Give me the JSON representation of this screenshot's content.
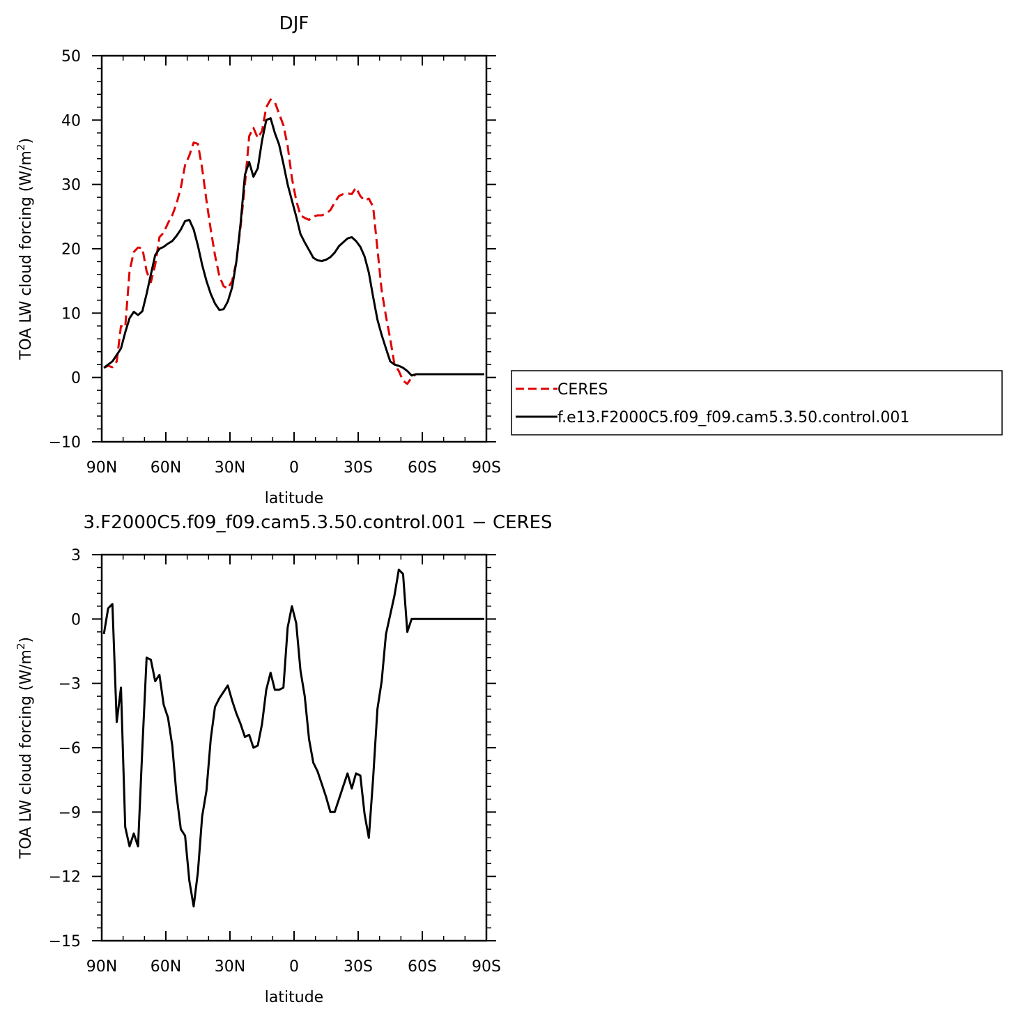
{
  "chart_data": [
    {
      "type": "line",
      "title": "DJF",
      "xlabel": "latitude",
      "ylabel": "TOA LW cloud forcing (W/m",
      "ylabel_sup": "2",
      "ylabel_end": ")",
      "xlim": [
        -90,
        90
      ],
      "ylim": [
        -10,
        50
      ],
      "x_ticks": [
        -90,
        -60,
        -30,
        0,
        30,
        60,
        90
      ],
      "x_tick_labels": [
        "90N",
        "60N",
        "30N",
        "0",
        "30S",
        "60S",
        "90S"
      ],
      "y_ticks": [
        -10,
        0,
        10,
        20,
        30,
        40,
        50
      ],
      "y_tick_labels": [
        "−10",
        "0",
        "10",
        "20",
        "30",
        "40",
        "50"
      ],
      "grid": false,
      "legend_position": "right",
      "series": [
        {
          "name": "CERES",
          "color": "#e00000",
          "dash": "dashed",
          "x": [
            -89,
            -87,
            -85,
            -83,
            -81,
            -79,
            -77,
            -75,
            -73,
            -71,
            -69,
            -67,
            -65,
            -63,
            -61,
            -59,
            -57,
            -55,
            -53,
            -51,
            -49,
            -47,
            -45,
            -43,
            -41,
            -39,
            -37,
            -35,
            -33,
            -31,
            -29,
            -27,
            -25,
            -23,
            -21,
            -19,
            -17,
            -15,
            -13,
            -11,
            -9,
            -7,
            -5,
            -3,
            -1,
            1,
            3,
            5,
            7,
            9,
            11,
            13,
            15,
            17,
            19,
            21,
            23,
            25,
            27,
            29,
            31,
            33,
            35,
            37,
            39,
            41,
            43,
            45,
            47,
            49,
            51,
            53,
            55,
            57,
            59,
            61,
            63,
            65,
            67,
            69,
            71,
            73,
            75,
            77,
            79,
            81,
            83,
            85,
            87,
            89
          ],
          "values": [
            1.5,
            1.8,
            1.6,
            2.5,
            8.0,
            7.8,
            16.5,
            19.5,
            20.2,
            20.1,
            16.5,
            14.8,
            17.5,
            21.8,
            22.5,
            24.0,
            25.2,
            27.0,
            29.5,
            33.0,
            34.5,
            36.5,
            36.3,
            32.5,
            27.5,
            23.0,
            19.0,
            15.8,
            14.2,
            13.8,
            15.0,
            18.0,
            23.5,
            30.0,
            37.5,
            38.8,
            37.2,
            38.3,
            42.0,
            43.2,
            42.8,
            41.0,
            39.2,
            36.0,
            31.0,
            27.5,
            25.2,
            24.8,
            24.5,
            25.0,
            25.2,
            25.2,
            25.5,
            26.0,
            27.2,
            28.2,
            28.5,
            28.6,
            28.5,
            29.5,
            28.2,
            27.5,
            27.8,
            26.5,
            20.0,
            13.5,
            9.5,
            6.0,
            2.0,
            1.0,
            -0.5,
            -1.0,
            0.0,
            0.5,
            0.5,
            0.5,
            0.5,
            0.5,
            0.5,
            0.5,
            0.5,
            0.5,
            0.5,
            0.5,
            0.5,
            0.5,
            0.5,
            0.5,
            0.5,
            0.5
          ]
        },
        {
          "name": "f.e13.F2000C5.f09_f09.cam5.3.50.control.001",
          "color": "#000000",
          "dash": "solid",
          "x": [
            -89,
            -87,
            -85,
            -83,
            -81,
            -79,
            -77,
            -75,
            -73,
            -71,
            -69,
            -67,
            -65,
            -63,
            -61,
            -59,
            -57,
            -55,
            -53,
            -51,
            -49,
            -47,
            -45,
            -43,
            -41,
            -39,
            -37,
            -35,
            -33,
            -31,
            -29,
            -27,
            -25,
            -23,
            -21,
            -19,
            -17,
            -15,
            -13,
            -11,
            -9,
            -7,
            -5,
            -3,
            -1,
            1,
            3,
            5,
            7,
            9,
            11,
            13,
            15,
            17,
            19,
            21,
            23,
            25,
            27,
            29,
            31,
            33,
            35,
            37,
            39,
            41,
            43,
            45,
            47,
            49,
            51,
            53,
            55,
            57,
            59,
            61,
            63,
            65,
            67,
            69,
            71,
            73,
            75,
            77,
            79,
            81,
            83,
            85,
            87,
            89
          ],
          "values": [
            1.5,
            2.0,
            2.5,
            3.5,
            4.5,
            7.0,
            9.2,
            10.2,
            9.7,
            10.3,
            13.0,
            16.0,
            19.0,
            20.0,
            20.3,
            20.8,
            21.2,
            22.0,
            23.0,
            24.3,
            24.5,
            23.0,
            20.5,
            17.5,
            15.0,
            13.0,
            11.5,
            10.5,
            10.6,
            11.8,
            14.0,
            18.0,
            24.0,
            31.5,
            33.5,
            31.2,
            32.5,
            36.8,
            40.0,
            40.3,
            38.0,
            36.2,
            33.2,
            30.0,
            27.5,
            25.0,
            22.3,
            21.0,
            19.8,
            18.6,
            18.2,
            18.1,
            18.3,
            18.7,
            19.4,
            20.4,
            21.0,
            21.6,
            21.8,
            21.2,
            20.3,
            18.8,
            16.3,
            12.5,
            9.0,
            6.6,
            4.5,
            2.5,
            2.0,
            1.8,
            1.5,
            1.0,
            0.3,
            0.5,
            0.5,
            0.5,
            0.5,
            0.5,
            0.5,
            0.5,
            0.5,
            0.5,
            0.5,
            0.5,
            0.5,
            0.5,
            0.5,
            0.5,
            0.5,
            0.5
          ]
        }
      ]
    },
    {
      "type": "line",
      "title": "3.F2000C5.f09_f09.cam5.3.50.control.001  −  CERES",
      "xlabel": "latitude",
      "ylabel": "TOA LW cloud forcing (W/m",
      "ylabel_sup": "2",
      "ylabel_end": ")",
      "xlim": [
        -90,
        90
      ],
      "ylim": [
        -15,
        3
      ],
      "x_ticks": [
        -90,
        -60,
        -30,
        0,
        30,
        60,
        90
      ],
      "x_tick_labels": [
        "90N",
        "60N",
        "30N",
        "0",
        "30S",
        "60S",
        "90S"
      ],
      "y_ticks": [
        -15,
        -12,
        -9,
        -6,
        -3,
        0,
        3
      ],
      "y_tick_labels": [
        "−15",
        "−12",
        "−9",
        "−6",
        "−3",
        "0",
        "3"
      ],
      "grid": false,
      "series": [
        {
          "color": "#000000",
          "dash": "solid",
          "x": [
            -89,
            -87,
            -85,
            -83,
            -81,
            -79,
            -77,
            -75,
            -73,
            -71,
            -69,
            -67,
            -65,
            -63,
            -61,
            -59,
            -57,
            -55,
            -53,
            -51,
            -49,
            -47,
            -45,
            -43,
            -41,
            -39,
            -37,
            -35,
            -33,
            -31,
            -29,
            -27,
            -25,
            -23,
            -21,
            -19,
            -17,
            -15,
            -13,
            -11,
            -9,
            -7,
            -5,
            -3,
            -1,
            1,
            3,
            5,
            7,
            9,
            11,
            13,
            15,
            17,
            19,
            21,
            23,
            25,
            27,
            29,
            31,
            33,
            35,
            37,
            39,
            41,
            43,
            45,
            47,
            49,
            51,
            53,
            55,
            57,
            59,
            61,
            63,
            65,
            67,
            69,
            71,
            73,
            75,
            77,
            79,
            81,
            83,
            85,
            87,
            89
          ],
          "values": [
            -0.7,
            0.5,
            0.7,
            -4.8,
            -3.2,
            -9.7,
            -10.6,
            -10.0,
            -10.6,
            -6.0,
            -1.8,
            -1.9,
            -2.9,
            -2.6,
            -4.0,
            -4.6,
            -5.9,
            -8.2,
            -9.8,
            -10.1,
            -12.2,
            -13.4,
            -11.8,
            -9.2,
            -8.0,
            -5.6,
            -4.1,
            -3.7,
            -3.4,
            -3.1,
            -3.8,
            -4.4,
            -4.9,
            -5.5,
            -5.4,
            -6.0,
            -5.9,
            -4.9,
            -3.3,
            -2.5,
            -3.3,
            -3.3,
            -3.2,
            -0.4,
            0.6,
            -0.2,
            -2.4,
            -3.6,
            -5.6,
            -6.7,
            -7.1,
            -7.7,
            -8.3,
            -9.0,
            -9.0,
            -8.4,
            -7.8,
            -7.2,
            -7.9,
            -7.2,
            -7.3,
            -9.1,
            -10.2,
            -7.4,
            -4.2,
            -2.9,
            -0.7,
            0.2,
            1.1,
            2.3,
            2.1,
            -0.6,
            0,
            0,
            0,
            0,
            0,
            0,
            0,
            0,
            0,
            0,
            0,
            0,
            0,
            0,
            0,
            0,
            0,
            0
          ]
        }
      ]
    }
  ]
}
